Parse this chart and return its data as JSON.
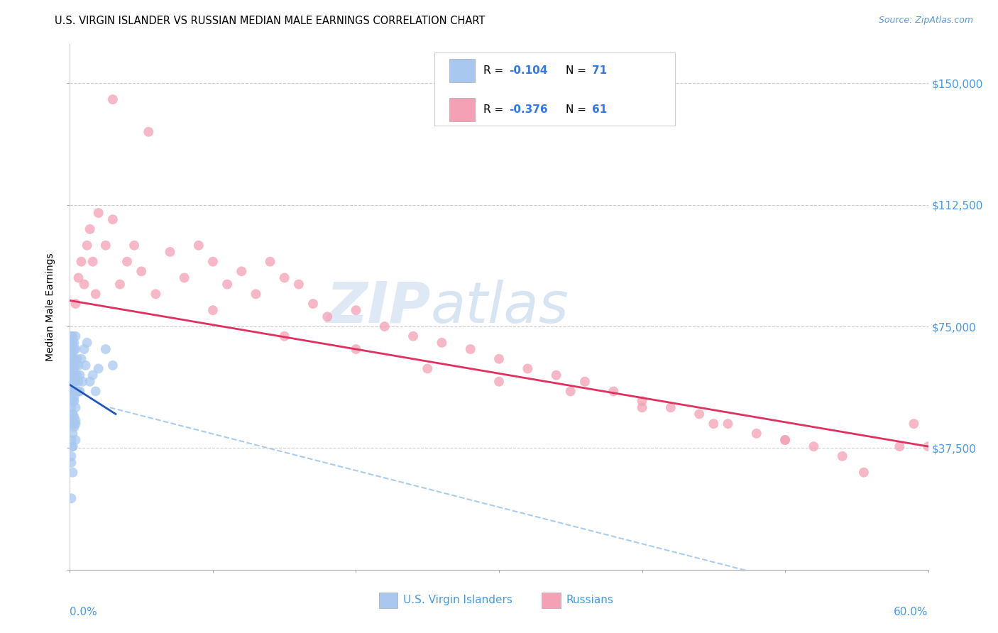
{
  "title": "U.S. VIRGIN ISLANDER VS RUSSIAN MEDIAN MALE EARNINGS CORRELATION CHART",
  "source": "Source: ZipAtlas.com",
  "ylabel": "Median Male Earnings",
  "xmin": 0.0,
  "xmax": 0.6,
  "ymin": 0,
  "ymax": 162000,
  "color_blue": "#A8C8F0",
  "color_pink": "#F4A0B5",
  "color_blue_line": "#2255BB",
  "color_pink_line": "#E03060",
  "color_blue_dashed": "#AACCEE",
  "watermark_zip": "ZIP",
  "watermark_atlas": "atlas",
  "blue_points_x": [
    0.001,
    0.001,
    0.001,
    0.001,
    0.001,
    0.001,
    0.001,
    0.001,
    0.001,
    0.001,
    0.002,
    0.002,
    0.002,
    0.002,
    0.002,
    0.002,
    0.002,
    0.002,
    0.002,
    0.002,
    0.003,
    0.003,
    0.003,
    0.003,
    0.003,
    0.003,
    0.003,
    0.003,
    0.003,
    0.003,
    0.004,
    0.004,
    0.004,
    0.004,
    0.004,
    0.004,
    0.004,
    0.005,
    0.005,
    0.005,
    0.006,
    0.006,
    0.007,
    0.007,
    0.008,
    0.009,
    0.01,
    0.011,
    0.012,
    0.014,
    0.016,
    0.018,
    0.02,
    0.001,
    0.001,
    0.002,
    0.002,
    0.003,
    0.004,
    0.002,
    0.003,
    0.025,
    0.03,
    0.006,
    0.004,
    0.002,
    0.001,
    0.003,
    0.002,
    0.001
  ],
  "blue_points_y": [
    63000,
    68000,
    72000,
    58000,
    55000,
    50000,
    45000,
    60000,
    65000,
    70000,
    60000,
    65000,
    55000,
    70000,
    52000,
    48000,
    58000,
    63000,
    67000,
    72000,
    62000,
    58000,
    53000,
    68000,
    64000,
    55000,
    47000,
    60000,
    65000,
    70000,
    58000,
    63000,
    55000,
    50000,
    45000,
    68000,
    72000,
    60000,
    55000,
    65000,
    58000,
    63000,
    55000,
    60000,
    65000,
    58000,
    68000,
    63000,
    70000,
    58000,
    60000,
    55000,
    62000,
    40000,
    35000,
    42000,
    38000,
    44000,
    46000,
    48000,
    52000,
    68000,
    63000,
    55000,
    40000,
    30000,
    22000,
    45000,
    38000,
    33000
  ],
  "pink_points_x": [
    0.004,
    0.006,
    0.008,
    0.01,
    0.012,
    0.014,
    0.016,
    0.018,
    0.02,
    0.025,
    0.03,
    0.035,
    0.04,
    0.045,
    0.05,
    0.06,
    0.07,
    0.08,
    0.09,
    0.1,
    0.11,
    0.12,
    0.13,
    0.14,
    0.15,
    0.16,
    0.17,
    0.18,
    0.2,
    0.22,
    0.24,
    0.26,
    0.28,
    0.3,
    0.32,
    0.34,
    0.36,
    0.38,
    0.4,
    0.42,
    0.44,
    0.46,
    0.48,
    0.5,
    0.52,
    0.54,
    0.555,
    0.58,
    0.59,
    0.6,
    0.03,
    0.055,
    0.1,
    0.15,
    0.2,
    0.25,
    0.3,
    0.35,
    0.4,
    0.45,
    0.5
  ],
  "pink_points_y": [
    82000,
    90000,
    95000,
    88000,
    100000,
    105000,
    95000,
    85000,
    110000,
    100000,
    108000,
    88000,
    95000,
    100000,
    92000,
    85000,
    98000,
    90000,
    100000,
    95000,
    88000,
    92000,
    85000,
    95000,
    90000,
    88000,
    82000,
    78000,
    80000,
    75000,
    72000,
    70000,
    68000,
    65000,
    62000,
    60000,
    58000,
    55000,
    52000,
    50000,
    48000,
    45000,
    42000,
    40000,
    38000,
    35000,
    30000,
    38000,
    45000,
    38000,
    145000,
    135000,
    80000,
    72000,
    68000,
    62000,
    58000,
    55000,
    50000,
    45000,
    40000
  ]
}
